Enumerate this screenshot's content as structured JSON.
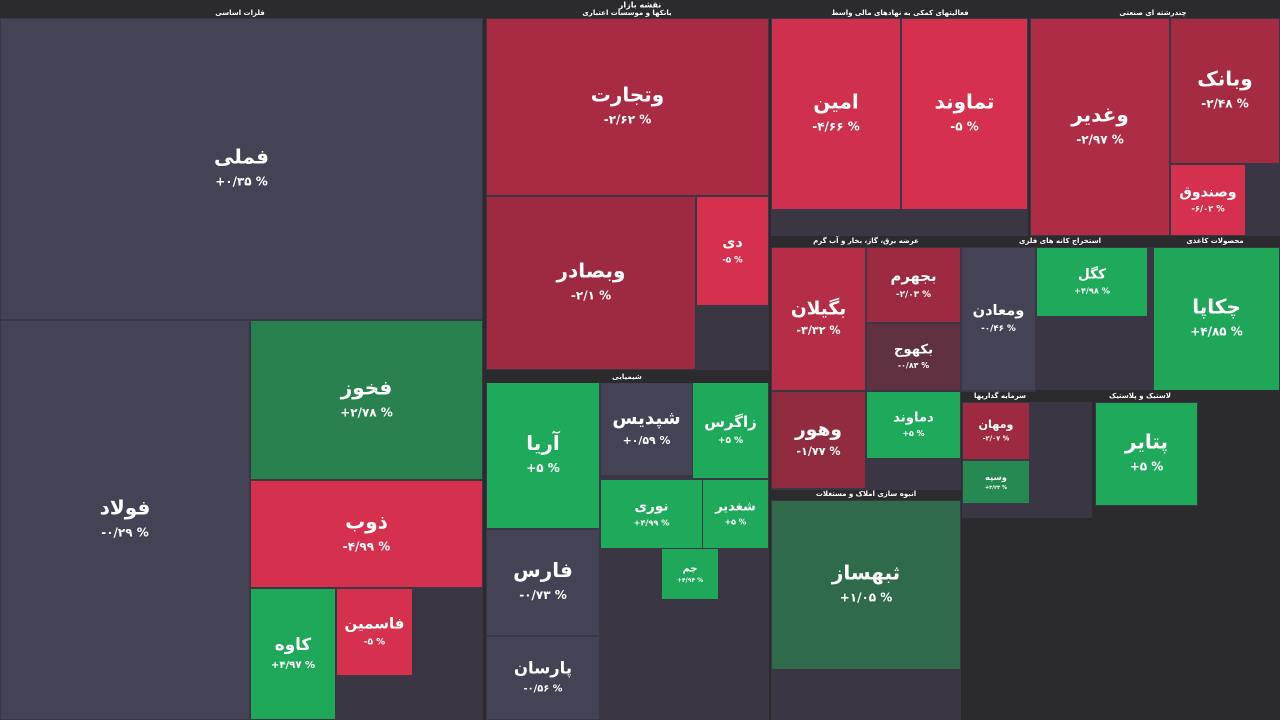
{
  "chart_data": {
    "type": "treemap",
    "title": "نقشه بازار",
    "sectors": [
      {
        "name": "فلزات اساسی",
        "tiles": [
          {
            "name": "فملی",
            "value": 0.35,
            "value_label": "+۰/۳۵ %"
          },
          {
            "name": "فولاد",
            "value": -0.29,
            "value_label": "-۰/۲۹ %"
          },
          {
            "name": "فخوز",
            "value": 2.78,
            "value_label": "+۲/۷۸ %"
          },
          {
            "name": "ذوب",
            "value": -4.99,
            "value_label": "-۴/۹۹ %"
          },
          {
            "name": "کاوه",
            "value": 4.97,
            "value_label": "+۴/۹۷ %"
          },
          {
            "name": "فاسمین",
            "value": -5,
            "value_label": "-۵ %"
          }
        ]
      },
      {
        "name": "بانکها و موسسات اعتباری",
        "tiles": [
          {
            "name": "وتجارت",
            "value": -2.62,
            "value_label": "-۲/۶۲ %"
          },
          {
            "name": "وبصادر",
            "value": -2.1,
            "value_label": "-۲/۱ %"
          },
          {
            "name": "دی",
            "value": -5,
            "value_label": "-۵ %"
          }
        ]
      },
      {
        "name": "شیمیایی",
        "tiles": [
          {
            "name": "آریا",
            "value": 5,
            "value_label": "+۵ %"
          },
          {
            "name": "شپدیس",
            "value": 0.59,
            "value_label": "+۰/۵۹ %"
          },
          {
            "name": "زاگرس",
            "value": 5,
            "value_label": "+۵ %"
          },
          {
            "name": "فارس",
            "value": -0.73,
            "value_label": "-۰/۷۳ %"
          },
          {
            "name": "پارسان",
            "value": -0.56,
            "value_label": "-۰/۵۶ %"
          },
          {
            "name": "نوری",
            "value": 4.99,
            "value_label": "+۴/۹۹ %"
          },
          {
            "name": "شغدیر",
            "value": 5,
            "value_label": "+۵ %"
          },
          {
            "name": "جم",
            "value": 4.94,
            "value_label": "+۴/۹۴ %"
          }
        ]
      },
      {
        "name": "فعالیتهای کمکی به نهادهای مالی واسط",
        "tiles": [
          {
            "name": "امین",
            "value": -4.66,
            "value_label": "-۴/۶۶ %"
          },
          {
            "name": "تماوند",
            "value": -5,
            "value_label": "-۵ %"
          }
        ]
      },
      {
        "name": "چندرشته ای صنعتی",
        "tiles": [
          {
            "name": "وغدیر",
            "value": -2.97,
            "value_label": "-۲/۹۷ %"
          },
          {
            "name": "وبانک",
            "value": -2.48,
            "value_label": "-۲/۴۸ %"
          },
          {
            "name": "وصندوق",
            "value": -6.02,
            "value_label": "-۶/۰۲ %"
          }
        ]
      },
      {
        "name": "عرضه برق، گاز، بخار و آب گرم",
        "tiles": [
          {
            "name": "بگیلان",
            "value": -3.32,
            "value_label": "-۳/۳۲ %"
          },
          {
            "name": "بجهرم",
            "value": -2.03,
            "value_label": "-۲/۰۳ %"
          },
          {
            "name": "بکهوج",
            "value": -0.83,
            "value_label": "-۰/۸۳ %"
          },
          {
            "name": "وهور",
            "value": -1.77,
            "value_label": "-۱/۷۷ %"
          },
          {
            "name": "دماوند",
            "value": 5,
            "value_label": "+۵ %"
          }
        ]
      },
      {
        "name": "انبوه سازی املاک و مستغلات",
        "tiles": [
          {
            "name": "ثبهساز",
            "value": 1.05,
            "value_label": "+۱/۰۵ %"
          }
        ]
      },
      {
        "name": "استخراج کانه های فلزی",
        "tiles": [
          {
            "name": "ومعادن",
            "value": -0.46,
            "value_label": "-۰/۴۶ %"
          }
        ]
      },
      {
        "name": "محصولات کاغذی",
        "tiles": [
          {
            "name": "چکاپا",
            "value": 4.85,
            "value_label": "+۴/۸۵ %"
          },
          {
            "name": "کگل",
            "value": 4.98,
            "value_label": "+۴/۹۸ %"
          }
        ]
      },
      {
        "name": "لاستیک و پلاستیک",
        "tiles": [
          {
            "name": "پتایر",
            "value": 5,
            "value_label": "+۵ %"
          }
        ]
      },
      {
        "name": "سرمایه گذاریها",
        "tiles": [
          {
            "name": "ومهان",
            "value": -2.07,
            "value_label": "-۲/۰۷ %"
          },
          {
            "name": "وسپه",
            "value": 3.23,
            "value_label": "+۳/۲۳ %"
          }
        ]
      }
    ]
  }
}
